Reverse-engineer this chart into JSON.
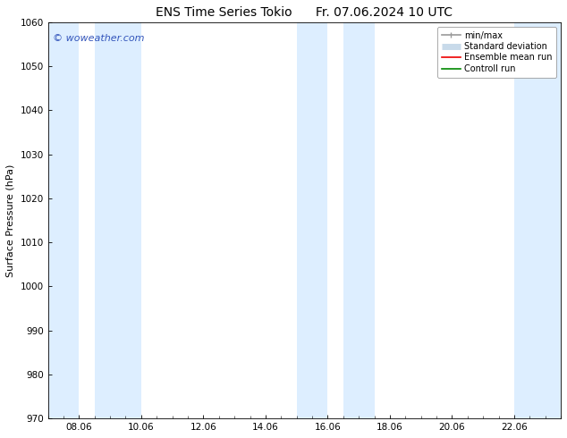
{
  "title_left": "ENS Time Series Tokio",
  "title_right": "Fr. 07.06.2024 10 UTC",
  "ylabel": "Surface Pressure (hPa)",
  "ylim": [
    970,
    1060
  ],
  "yticks": [
    970,
    980,
    990,
    1000,
    1010,
    1020,
    1030,
    1040,
    1050,
    1060
  ],
  "watermark": "© woweather.com",
  "watermark_color": "#3355bb",
  "bg_color": "#ffffff",
  "plot_bg_color": "#ffffff",
  "shade_color": "#ddeeff",
  "legend_entries": [
    {
      "label": "min/max",
      "color": "#999999",
      "lw": 1.2
    },
    {
      "label": "Standard deviation",
      "color": "#c8daea",
      "lw": 5
    },
    {
      "label": "Ensemble mean run",
      "color": "#ee0000",
      "lw": 1.2
    },
    {
      "label": "Controll run",
      "color": "#008800",
      "lw": 1.2
    }
  ],
  "title_fontsize": 10,
  "tick_fontsize": 7.5,
  "ylabel_fontsize": 8,
  "legend_fontsize": 7
}
